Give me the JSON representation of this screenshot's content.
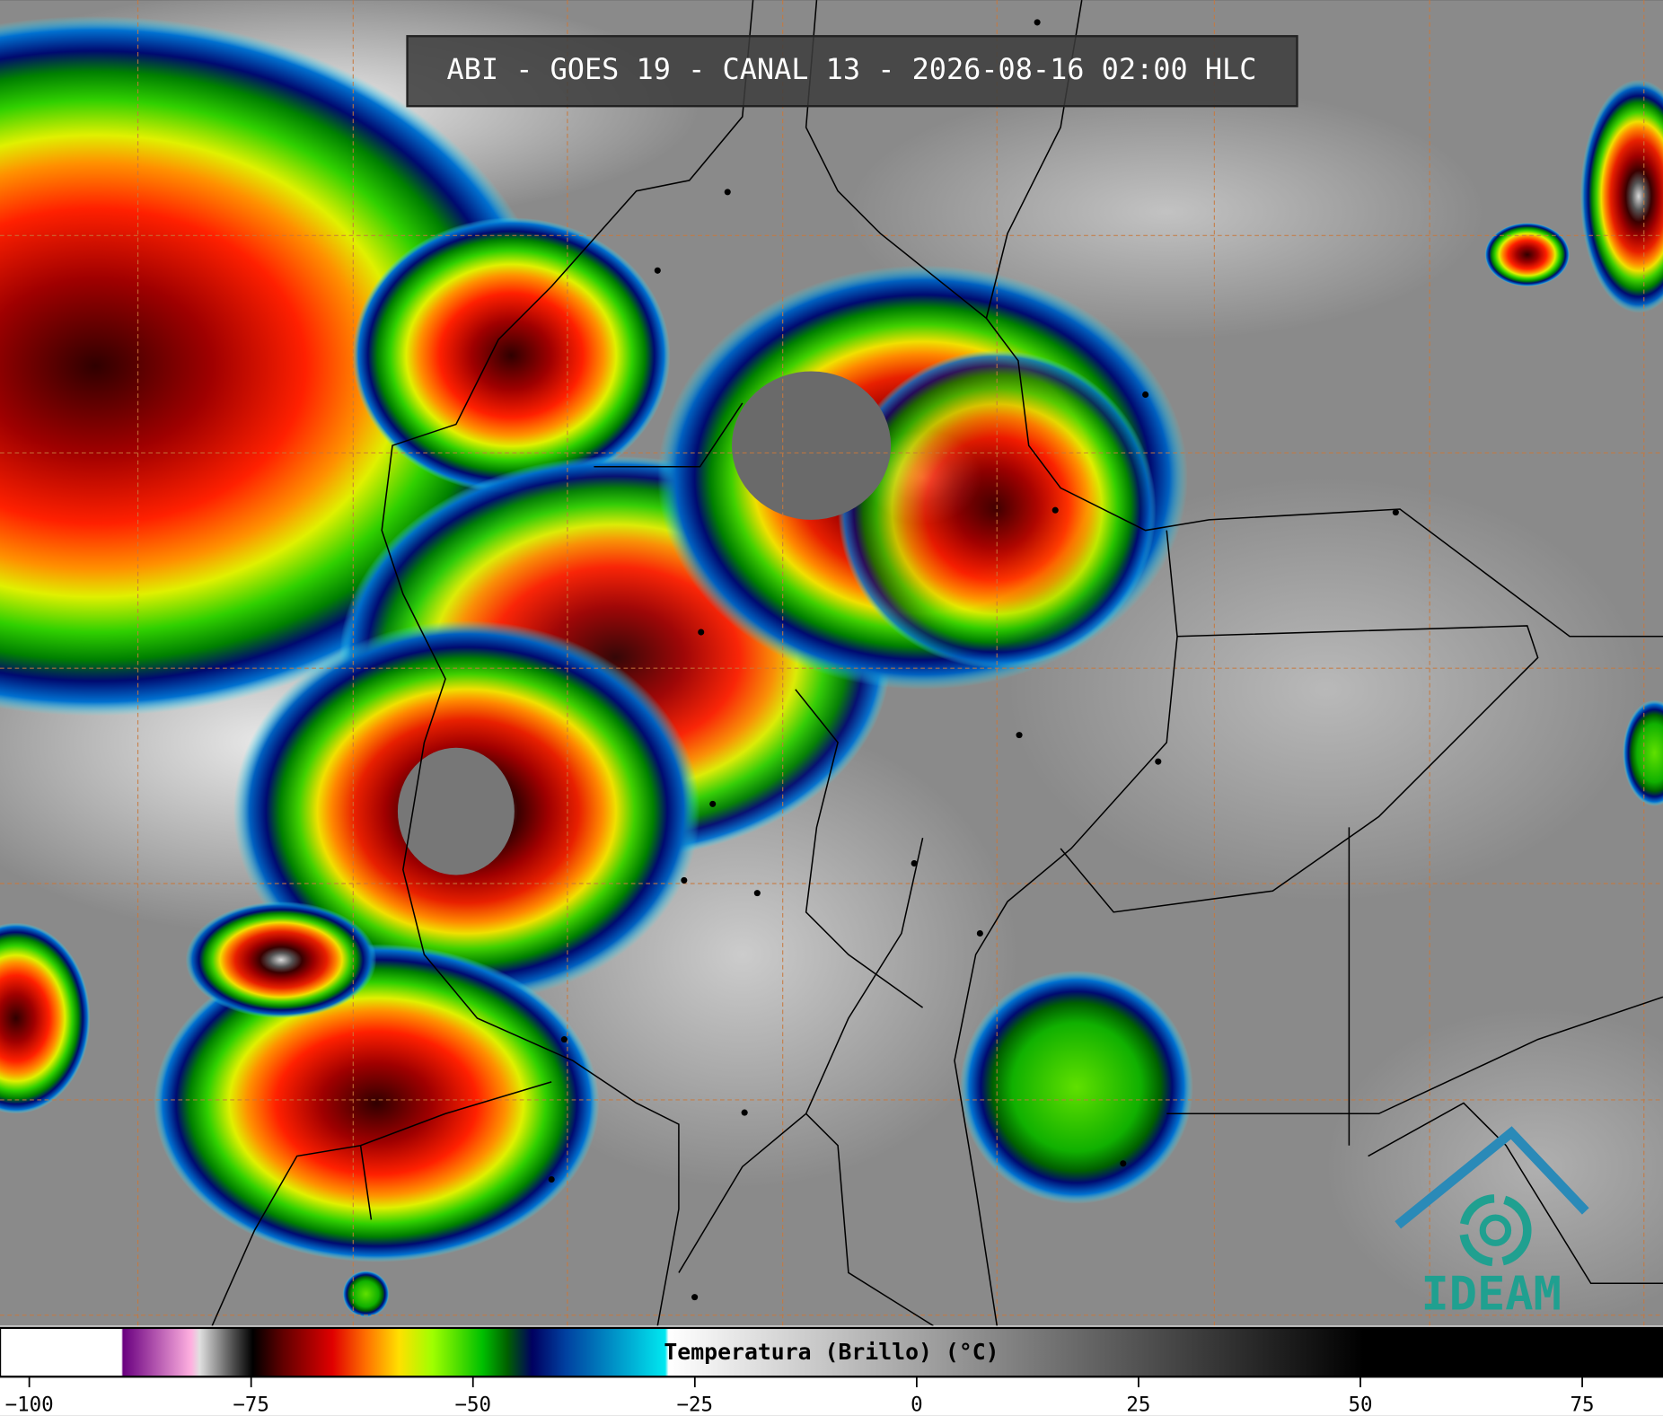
{
  "header": {
    "title": "ABI - GOES 19 - CANAL 13 - 2026-08-16 02:00 HLC"
  },
  "colorbar": {
    "label": "Temperatura (Brillo) (°C)",
    "lim": [
      -103.3,
      84.1
    ],
    "ticks": [
      {
        "value": -100,
        "label": "−100"
      },
      {
        "value": -75,
        "label": "−75"
      },
      {
        "value": -50,
        "label": "−50"
      },
      {
        "value": -25,
        "label": "−25"
      },
      0,
      25,
      50,
      75
    ]
  },
  "logo": {
    "text": "IDEAM"
  }
}
